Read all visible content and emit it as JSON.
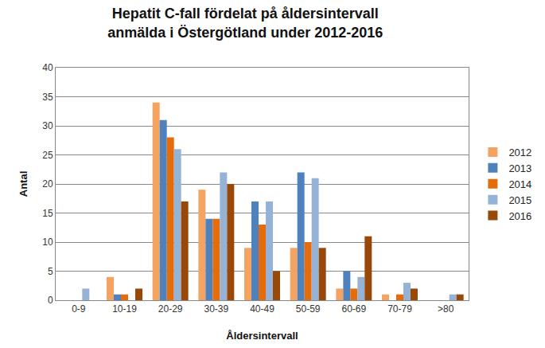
{
  "chart_data": {
    "type": "bar",
    "title": "Hepatit C-fall fördelat på åldersintervall\nanmälda i Östergötland under 2012-2016",
    "x_label": "Åldersintervall",
    "y_label": "Antal",
    "categories": [
      "0-9",
      "10-19",
      "20-29",
      "30-39",
      "40-49",
      "50-59",
      "60-69",
      "70-79",
      ">80"
    ],
    "series": [
      {
        "name": "2012",
        "color": "#F4A460",
        "values": [
          0,
          4,
          34,
          19,
          9,
          9,
          2,
          1,
          0
        ]
      },
      {
        "name": "2013",
        "color": "#4F81BD",
        "values": [
          0,
          1,
          31,
          14,
          17,
          22,
          5,
          0,
          0
        ]
      },
      {
        "name": "2014",
        "color": "#E46C0A",
        "values": [
          0,
          1,
          28,
          14,
          13,
          10,
          2,
          1,
          0
        ]
      },
      {
        "name": "2015",
        "color": "#95B3D7",
        "values": [
          2,
          0,
          26,
          22,
          17,
          21,
          4,
          3,
          1
        ]
      },
      {
        "name": "2016",
        "color": "#984807",
        "values": [
          0,
          2,
          17,
          20,
          5,
          9,
          11,
          2,
          1
        ]
      }
    ],
    "ylim": [
      0,
      40
    ],
    "yticks": [
      0,
      5,
      10,
      15,
      20,
      25,
      30,
      35,
      40
    ],
    "grid": true,
    "legend": "right"
  }
}
